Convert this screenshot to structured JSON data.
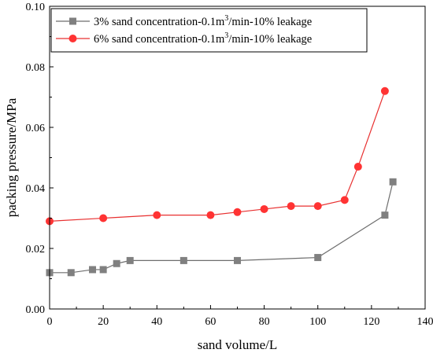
{
  "chart_data": {
    "type": "line",
    "title": "",
    "xlabel": "sand volume/L",
    "ylabel": "packing pressure/MPa",
    "xlim": [
      0,
      140
    ],
    "ylim": [
      0.0,
      0.1
    ],
    "xticks": [
      0,
      20,
      40,
      60,
      80,
      100,
      120,
      140
    ],
    "yticks": [
      0.0,
      0.02,
      0.04,
      0.06,
      0.08,
      0.1
    ],
    "xtick_labels": [
      "0",
      "20",
      "40",
      "60",
      "80",
      "100",
      "120",
      "140"
    ],
    "ytick_labels": [
      "0.00",
      "0.02",
      "0.04",
      "0.06",
      "0.08",
      "0.10"
    ],
    "grid": false,
    "legend_position": "top-left",
    "series": [
      {
        "legend_before": "3% sand concentration-0.1m",
        "legend_sup": "3",
        "legend_after": "/min-10% leakage",
        "marker": "square",
        "color": "#808080",
        "line_color": "#6e6e6e",
        "x": [
          0,
          8,
          16,
          20,
          25,
          30,
          50,
          70,
          100,
          125,
          128
        ],
        "y": [
          0.012,
          0.012,
          0.013,
          0.013,
          0.015,
          0.016,
          0.016,
          0.016,
          0.017,
          0.031,
          0.042
        ]
      },
      {
        "legend_before": "6% sand concentration-0.1m",
        "legend_sup": "3",
        "legend_after": "/min-10% leakage",
        "marker": "circle",
        "color": "#ff3333",
        "line_color": "#e83030",
        "x": [
          0,
          20,
          40,
          60,
          70,
          80,
          90,
          100,
          110,
          115,
          125
        ],
        "y": [
          0.029,
          0.03,
          0.031,
          0.031,
          0.032,
          0.033,
          0.034,
          0.034,
          0.036,
          0.047,
          0.072
        ]
      }
    ]
  }
}
